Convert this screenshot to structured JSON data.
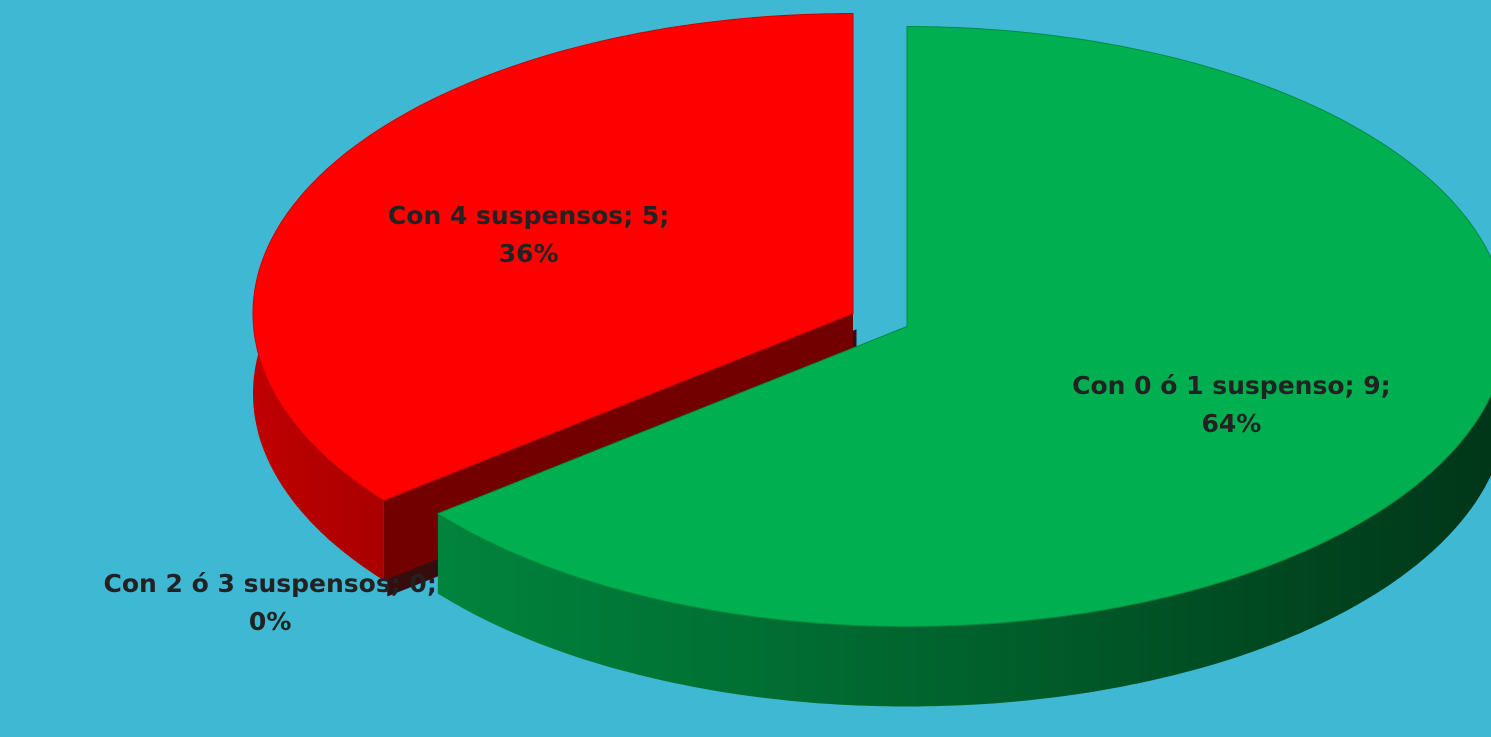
{
  "chart_data": {
    "type": "pie3d",
    "values": [
      9,
      0,
      5
    ],
    "value_labels": [
      "Con 0 ó 1 suspenso; 9; 64%",
      "Con 2 ó 3 suspensos; 0; 0%",
      "Con 4 suspensos; 5; 36%"
    ],
    "colors": [
      "#00b050",
      "#7a1a1a",
      "#ff0000"
    ]
  }
}
